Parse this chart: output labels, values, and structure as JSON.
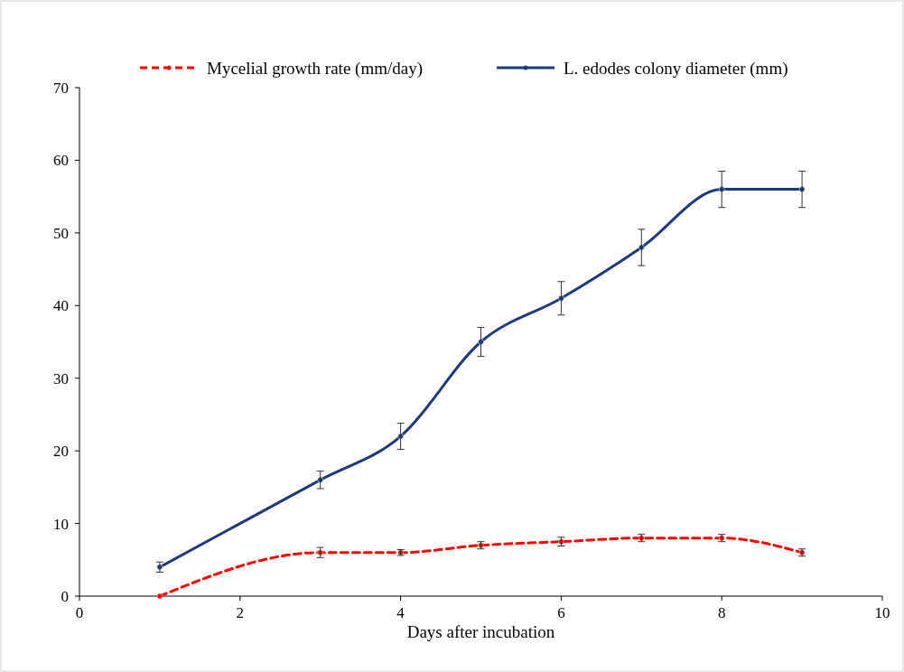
{
  "chart_data": {
    "type": "line",
    "xlabel": "Days after incubation",
    "xlim": [
      0,
      10
    ],
    "xticks": [
      0,
      2,
      4,
      6,
      8,
      10
    ],
    "ylim": [
      0,
      70
    ],
    "yticks": [
      0,
      10,
      20,
      30,
      40,
      50,
      60,
      70
    ],
    "grid": false,
    "legend": "top",
    "marker": "circle",
    "series": [
      {
        "name": "Mycelial growth rate (mm/day)",
        "color": "#ff0000",
        "line_style": "dashed",
        "x": [
          1,
          3,
          4,
          5,
          6,
          7,
          8,
          9
        ],
        "values": [
          0,
          6,
          6,
          7,
          7.5,
          8,
          8,
          6
        ],
        "errors": [
          null,
          0.7,
          0.4,
          0.5,
          0.6,
          0.5,
          0.5,
          0.5
        ]
      },
      {
        "name": "L. edodes colony diameter (mm)",
        "color": "#1f3a7a",
        "line_style": "solid",
        "x": [
          1,
          3,
          4,
          5,
          6,
          7,
          8,
          9
        ],
        "values": [
          4,
          16,
          22,
          35,
          41,
          48,
          56,
          56
        ],
        "errors": [
          0.7,
          1.2,
          1.8,
          2,
          2.3,
          2.5,
          2.5,
          2.5
        ]
      }
    ]
  }
}
